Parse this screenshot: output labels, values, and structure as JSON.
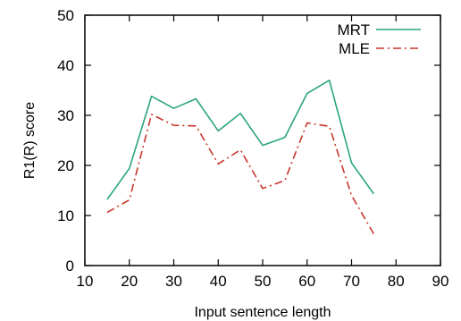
{
  "chart_data": {
    "type": "line",
    "title": "",
    "xlabel": "Input sentence length",
    "ylabel": "R1(R) score",
    "xlim": [
      10,
      90
    ],
    "ylim": [
      0,
      50
    ],
    "xticks": [
      10,
      20,
      30,
      40,
      50,
      60,
      70,
      80,
      90
    ],
    "yticks": [
      0,
      10,
      20,
      30,
      40,
      50
    ],
    "grid": false,
    "legend_position": "top-right",
    "x": [
      15,
      20,
      25,
      30,
      35,
      40,
      45,
      50,
      55,
      60,
      65,
      70,
      75
    ],
    "series": [
      {
        "name": "MRT",
        "color": "#2aa57a",
        "style": "solid",
        "values": [
          13.2,
          19.4,
          33.8,
          31.4,
          33.3,
          26.9,
          30.4,
          24.0,
          25.6,
          34.4,
          37.0,
          20.5,
          14.3
        ]
      },
      {
        "name": "MLE",
        "color": "#c8372d",
        "style": "dash-dot",
        "values": [
          10.6,
          13.1,
          30.2,
          28.0,
          27.9,
          20.3,
          23.1,
          15.4,
          17.0,
          28.5,
          27.8,
          14.0,
          6.3
        ]
      }
    ]
  }
}
